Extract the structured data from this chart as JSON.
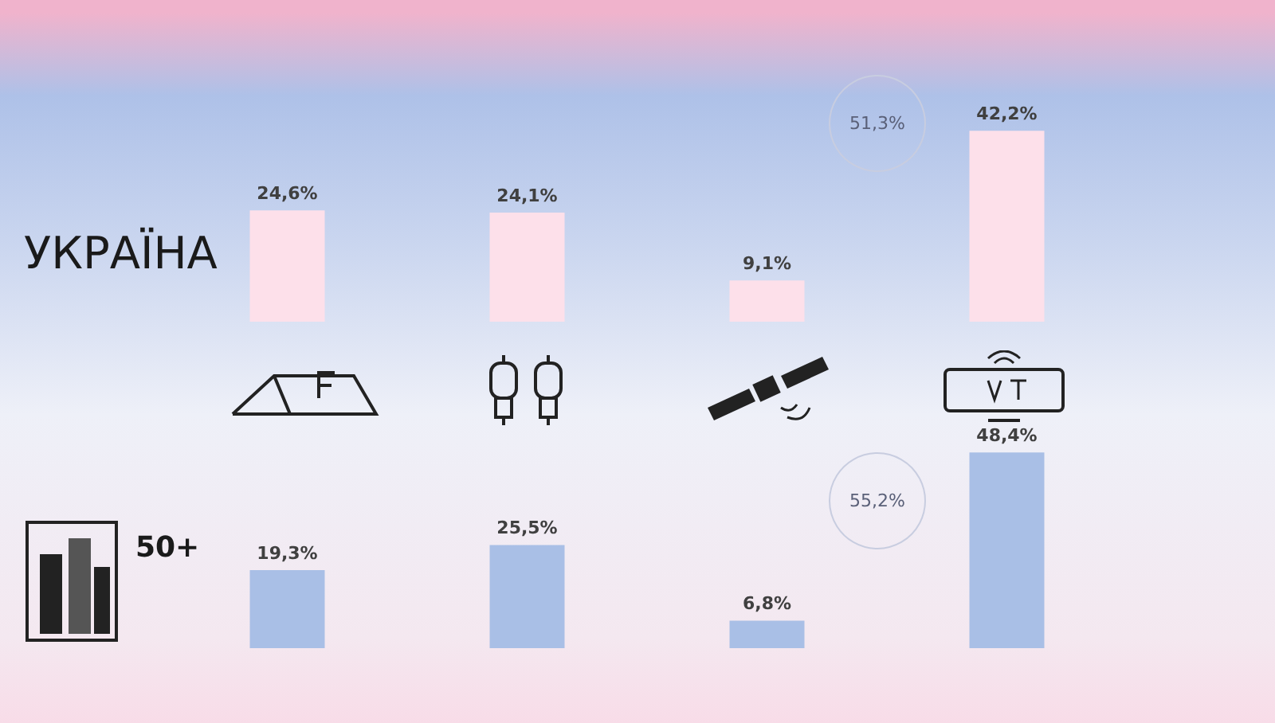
{
  "chart_data": [
    {
      "type": "bar",
      "title": "УКРАЇНА",
      "categories": [
        null,
        null,
        null,
        null
      ],
      "values": [
        24.6,
        24.1,
        9.1,
        42.2
      ],
      "value_labels": [
        "24,6%",
        "24,1%",
        "9,1%",
        "42,2%"
      ],
      "color": "#fde0ea",
      "annotations": [
        "51,3%"
      ]
    },
    {
      "type": "bar",
      "title": "50+",
      "categories": [
        null,
        null,
        null,
        null
      ],
      "values": [
        19.3,
        25.5,
        6.8,
        48.4
      ],
      "value_labels": [
        "19,3%",
        "25,5%",
        "6,8%",
        "48,4%"
      ],
      "color": "#a9bfe6",
      "annotations": [
        "55,2%"
      ]
    }
  ]
}
